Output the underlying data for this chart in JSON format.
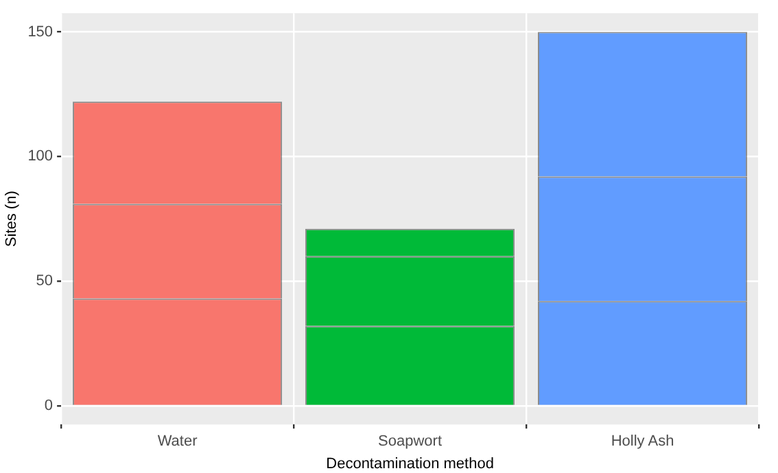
{
  "chart_data": {
    "type": "bar",
    "stacked": true,
    "xlabel": "Decontamination method",
    "ylabel": "Sites (n)",
    "categories": [
      "Water",
      "Soapwort",
      "Holly Ash"
    ],
    "series": [
      {
        "colors": [
          "#f8766d",
          "#00ba38",
          "#619cff"
        ],
        "values": [
          43,
          32,
          42
        ]
      },
      {
        "colors": [
          "#f8766d",
          "#00ba38",
          "#619cff"
        ],
        "values": [
          38,
          28,
          50
        ]
      },
      {
        "colors": [
          "#f8766d",
          "#00ba38",
          "#619cff"
        ],
        "values": [
          41,
          11,
          58
        ]
      }
    ],
    "ylim": [
      -7.5,
      157.5
    ],
    "yticks": [
      0,
      50,
      100,
      150
    ],
    "grid": true,
    "legend": false
  }
}
